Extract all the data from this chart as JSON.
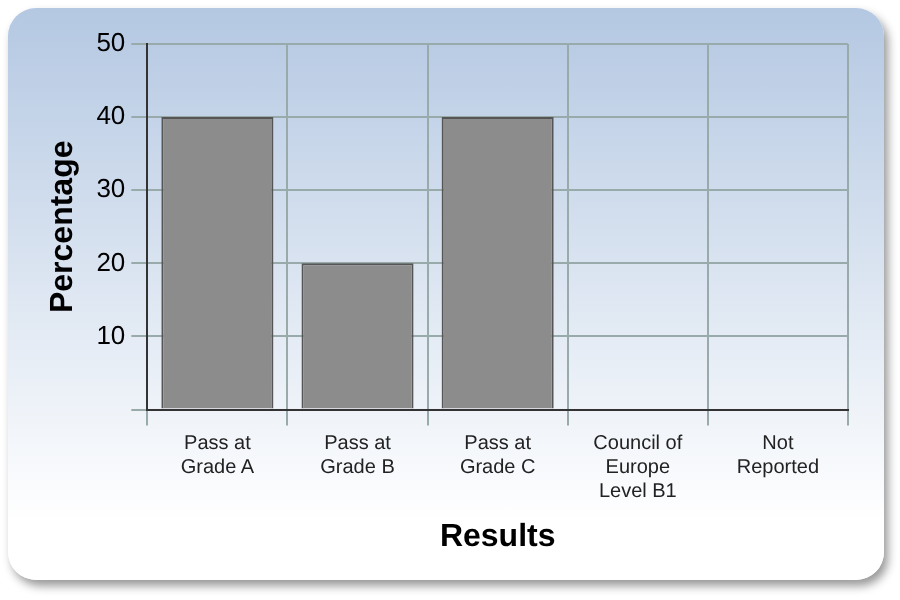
{
  "chart_data": {
    "type": "bar",
    "xlabel": "Results",
    "ylabel": "Percentage",
    "categories": [
      "Pass at Grade A",
      "Pass at Grade B",
      "Pass at Grade C",
      "Council of Europe Level B1",
      "Not Reported"
    ],
    "values": [
      40,
      20,
      40,
      0,
      0
    ],
    "color": "#8c8c8c",
    "ylim": [
      0,
      50
    ],
    "yticks": [
      {
        "value": 0,
        "label": null
      },
      10,
      20,
      30,
      40,
      50
    ],
    "grid": true
  }
}
